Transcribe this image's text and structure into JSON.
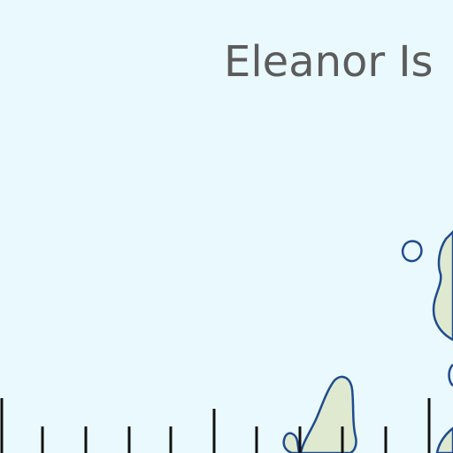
{
  "map": {
    "labels": {
      "place_name": "Eleanor Is"
    },
    "colors": {
      "water": "#eaf9fd",
      "land": "#dfe9cf",
      "shoreline": "#1f4b8f",
      "scale_ticks": "#111111",
      "label_text": "#5c5c5c"
    }
  }
}
